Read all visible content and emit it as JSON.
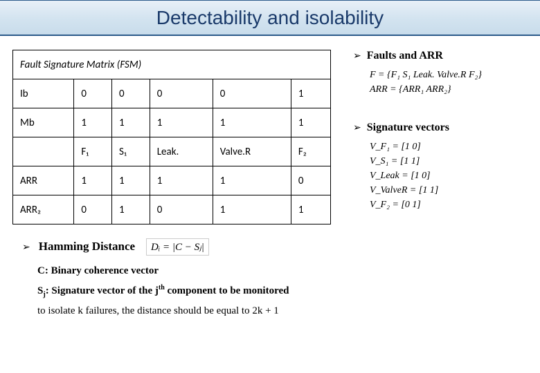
{
  "title": "Detectability and isolability",
  "fsm": {
    "label": "Fault Signature Matrix (FSM)",
    "row_ib": {
      "name": "Ib",
      "cells": [
        "0",
        "0",
        "0",
        "0",
        "1"
      ]
    },
    "row_mb": {
      "name": "Mb",
      "cells": [
        "1",
        "1",
        "1",
        "1",
        "1"
      ]
    },
    "header2": [
      "F₁",
      "S₁",
      "Leak.",
      "Valve.R",
      "F₂"
    ],
    "row_arr1": {
      "name": "ARR",
      "cells": [
        "1",
        "1",
        "1",
        "1",
        "0"
      ]
    },
    "row_arr2": {
      "name": "ARR₂",
      "cells": [
        "0",
        "1",
        "0",
        "1",
        "1"
      ]
    }
  },
  "faults_arr": {
    "heading": "Faults and ARR",
    "line1": "F = {F₁   S₁   Leak.   Valve.R   F₂}",
    "line2": "ARR = {ARR₁   ARR₂}"
  },
  "sig": {
    "heading": "Signature vectors",
    "lines": [
      "V_F₁ = [1   0]",
      "V_S₁ = [1   1]",
      "V_Leak = [1   0]",
      "V_ValveR = [1   1]",
      "V_F₂ = [0   1]"
    ]
  },
  "hamming": {
    "heading": "Hamming Distance",
    "formula": "Dᵢ = |C − Sⱼ|",
    "note_c": "C: Binary coherence vector",
    "note_s_pre": "S",
    "note_s_sub": "j",
    "note_s_mid": ": Signature vector of the j",
    "note_s_sup": "th",
    "note_s_post": " component to be monitored",
    "note_iso": "to isolate k failures, the distance should be equal to 2k + 1"
  }
}
